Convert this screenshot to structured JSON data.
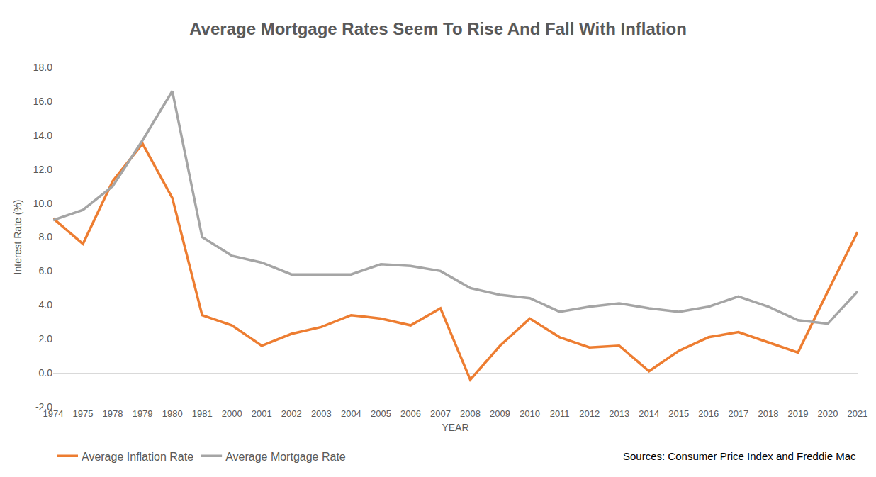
{
  "chart_data": {
    "type": "line",
    "title": "Average Mortgage Rates Seem To Rise And Fall With Inflation",
    "x_label": "YEAR",
    "y_label": "Interest Rate (%)",
    "annotations": [
      "Sources: Consumer Price Index and Freddie Mac"
    ],
    "categories": [
      "1974",
      "1975",
      "1978",
      "1979",
      "1980",
      "1981",
      "2000",
      "2001",
      "2002",
      "2003",
      "2004",
      "2005",
      "2006",
      "2007",
      "2008",
      "2009",
      "2010",
      "2011",
      "2012",
      "2013",
      "2014",
      "2015",
      "2016",
      "2017",
      "2018",
      "2019",
      "2020",
      "2021"
    ],
    "series": [
      {
        "name": "Average Inflation Rate",
        "color": "#ed7d31",
        "values": [
          9.1,
          7.6,
          11.3,
          13.5,
          10.3,
          3.4,
          2.8,
          1.6,
          2.3,
          2.7,
          3.4,
          3.2,
          2.8,
          3.8,
          -0.4,
          1.6,
          3.2,
          2.1,
          1.5,
          1.6,
          0.1,
          1.3,
          2.1,
          2.4,
          1.8,
          1.2,
          4.8,
          8.3
        ]
      },
      {
        "name": "Average Mortgage Rate",
        "color": "#a5a5a5",
        "values": [
          9.0,
          9.6,
          11.0,
          13.7,
          16.6,
          8.0,
          6.9,
          6.5,
          5.8,
          5.8,
          5.8,
          6.4,
          6.3,
          6.0,
          5.0,
          4.6,
          4.4,
          3.6,
          3.9,
          4.1,
          3.8,
          3.6,
          3.9,
          4.5,
          3.9,
          3.1,
          2.9,
          4.8
        ]
      }
    ],
    "ylim": [
      -2,
      18
    ],
    "yticks": [
      {
        "value": -2,
        "label": "-2.0"
      },
      {
        "value": 0,
        "label": "0.0"
      },
      {
        "value": 2,
        "label": "2.0"
      },
      {
        "value": 4,
        "label": "4.0"
      },
      {
        "value": 6,
        "label": "6.0"
      },
      {
        "value": 8,
        "label": "8.0"
      },
      {
        "value": 10,
        "label": "10.0"
      },
      {
        "value": 12,
        "label": "12.0"
      },
      {
        "value": 14,
        "label": "14.0"
      },
      {
        "value": 16,
        "label": "16.0"
      },
      {
        "value": 18,
        "label": "18.0"
      }
    ],
    "grid": true,
    "legend": "bottom left"
  }
}
